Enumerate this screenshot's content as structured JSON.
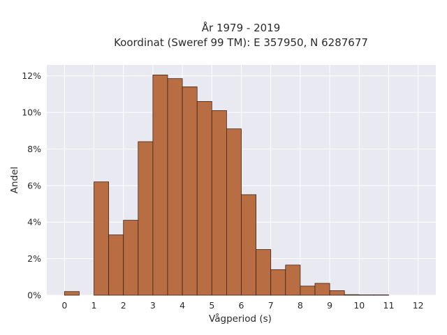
{
  "chart_data": {
    "type": "bar",
    "title_line1": "År 1979 - 2019",
    "title_line2": "Koordinat (Sweref 99 TM): E 357950, N 6287677",
    "xlabel": "Vågperiod (s)",
    "ylabel": "Andel",
    "bin_width": 0.5,
    "bins": [
      {
        "start": 0.0,
        "value": 0.2
      },
      {
        "start": 0.5,
        "value": 0.0
      },
      {
        "start": 1.0,
        "value": 6.2
      },
      {
        "start": 1.5,
        "value": 3.3
      },
      {
        "start": 2.0,
        "value": 4.1
      },
      {
        "start": 2.5,
        "value": 8.4
      },
      {
        "start": 3.0,
        "value": 12.05
      },
      {
        "start": 3.5,
        "value": 11.85
      },
      {
        "start": 4.0,
        "value": 11.4
      },
      {
        "start": 4.5,
        "value": 10.6
      },
      {
        "start": 5.0,
        "value": 10.1
      },
      {
        "start": 5.5,
        "value": 9.1
      },
      {
        "start": 6.0,
        "value": 5.5
      },
      {
        "start": 6.5,
        "value": 2.5
      },
      {
        "start": 7.0,
        "value": 1.4
      },
      {
        "start": 7.5,
        "value": 1.65
      },
      {
        "start": 8.0,
        "value": 0.5
      },
      {
        "start": 8.5,
        "value": 0.65
      },
      {
        "start": 9.0,
        "value": 0.25
      },
      {
        "start": 9.5,
        "value": 0.03
      },
      {
        "start": 10.0,
        "value": 0.02
      },
      {
        "start": 10.5,
        "value": 0.02
      }
    ],
    "xlim": [
      -0.6,
      12.6
    ],
    "ylim": [
      0,
      12.6
    ],
    "x_ticks": [
      "0",
      "1",
      "2",
      "3",
      "4",
      "5",
      "6",
      "7",
      "8",
      "9",
      "10",
      "11",
      "12"
    ],
    "y_ticks": [
      "0%",
      "2%",
      "4%",
      "6%",
      "8%",
      "10%",
      "12%"
    ],
    "grid": true,
    "colors": {
      "bar_fill": "#b96d43",
      "bar_stroke": "#3d2416",
      "plot_bg": "#e9e9f1",
      "grid": "#ffffff"
    }
  }
}
